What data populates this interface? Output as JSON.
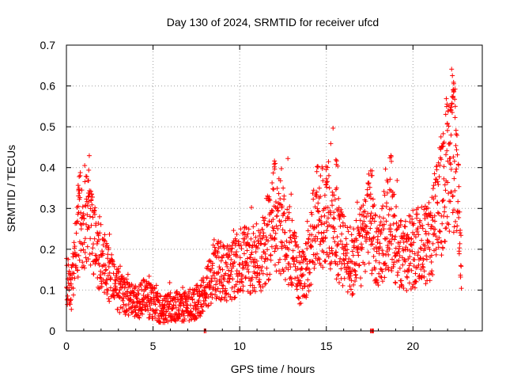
{
  "chart_data": {
    "type": "scatter",
    "title": "Day 130 of 2024, SRMTID for receiver ufcd",
    "xlabel": "GPS time / hours",
    "ylabel": "SRMTID / TECUs",
    "xlim": [
      0,
      24
    ],
    "ylim": [
      0,
      0.7
    ],
    "xticks": [
      0,
      5,
      10,
      15,
      20
    ],
    "xtick_labels": [
      "0",
      "5",
      "10",
      "15",
      "20"
    ],
    "yticks": [
      0,
      0.1,
      0.2,
      0.3,
      0.4,
      0.5,
      0.6,
      0.7
    ],
    "ytick_labels": [
      "0",
      "0.1",
      "0.2",
      "0.3",
      "0.4",
      "0.5",
      "0.6",
      "0.7"
    ],
    "grid": true,
    "marker": "plus",
    "color": "#ff0000",
    "series": [
      {
        "name": "SRMTID",
        "trend": [
          [
            0.0,
            0.12
          ],
          [
            0.3,
            0.11
          ],
          [
            0.5,
            0.18
          ],
          [
            0.8,
            0.28
          ],
          [
            1.0,
            0.24
          ],
          [
            1.3,
            0.3
          ],
          [
            1.6,
            0.22
          ],
          [
            2.0,
            0.18
          ],
          [
            2.5,
            0.13
          ],
          [
            3.0,
            0.1
          ],
          [
            3.5,
            0.08
          ],
          [
            4.0,
            0.07
          ],
          [
            4.5,
            0.08
          ],
          [
            5.0,
            0.07
          ],
          [
            5.5,
            0.05
          ],
          [
            6.0,
            0.06
          ],
          [
            6.5,
            0.06
          ],
          [
            7.0,
            0.06
          ],
          [
            7.5,
            0.07
          ],
          [
            8.0,
            0.09
          ],
          [
            8.5,
            0.15
          ],
          [
            9.0,
            0.15
          ],
          [
            9.5,
            0.14
          ],
          [
            10.0,
            0.18
          ],
          [
            10.5,
            0.17
          ],
          [
            11.0,
            0.16
          ],
          [
            11.5,
            0.21
          ],
          [
            12.0,
            0.28
          ],
          [
            12.5,
            0.24
          ],
          [
            13.0,
            0.2
          ],
          [
            13.5,
            0.12
          ],
          [
            14.0,
            0.18
          ],
          [
            14.5,
            0.25
          ],
          [
            15.0,
            0.3
          ],
          [
            15.5,
            0.25
          ],
          [
            16.0,
            0.19
          ],
          [
            16.5,
            0.17
          ],
          [
            17.0,
            0.21
          ],
          [
            17.5,
            0.27
          ],
          [
            18.0,
            0.19
          ],
          [
            18.5,
            0.26
          ],
          [
            19.0,
            0.22
          ],
          [
            19.5,
            0.18
          ],
          [
            20.0,
            0.2
          ],
          [
            20.5,
            0.21
          ],
          [
            21.0,
            0.22
          ],
          [
            21.5,
            0.3
          ],
          [
            22.0,
            0.42
          ],
          [
            22.3,
            0.45
          ],
          [
            22.6,
            0.32
          ],
          [
            22.8,
            0.17
          ]
        ],
        "spikes": [
          [
            0.7,
            0.36
          ],
          [
            1.3,
            0.34
          ],
          [
            12.0,
            0.42
          ],
          [
            14.5,
            0.41
          ],
          [
            15.0,
            0.38
          ],
          [
            15.6,
            0.43
          ],
          [
            17.6,
            0.41
          ],
          [
            18.7,
            0.43
          ],
          [
            21.7,
            0.47
          ],
          [
            22.0,
            0.52
          ],
          [
            22.2,
            0.55
          ],
          [
            22.3,
            0.6
          ],
          [
            22.4,
            0.61
          ],
          [
            8.0,
            0.0
          ],
          [
            17.6,
            0.0
          ],
          [
            17.7,
            0.0
          ]
        ]
      }
    ]
  }
}
